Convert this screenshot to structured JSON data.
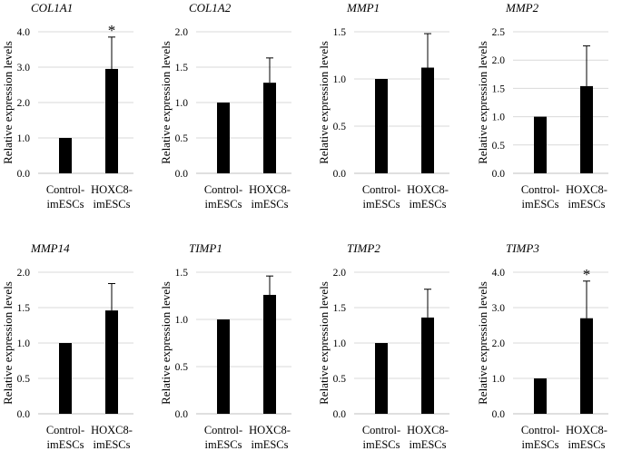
{
  "figure": {
    "ylabel": "Relative expression levels",
    "categories": [
      [
        "Control-",
        "imESCs"
      ],
      [
        "HOXC8-",
        "imESCs"
      ]
    ]
  },
  "chart_data": [
    {
      "type": "bar",
      "title": "COL1A1",
      "categories": [
        "Control-imESCs",
        "HOXC8-imESCs"
      ],
      "values": [
        1.0,
        2.95
      ],
      "error": [
        0,
        0.9
      ],
      "significance": [
        "",
        "*"
      ],
      "ylim": [
        0,
        4.0
      ],
      "yticks": [
        0,
        1,
        2,
        3,
        4
      ],
      "tickLabels": [
        "0.0",
        "1.0",
        "2.0",
        "3.0",
        "4.0"
      ],
      "ylabel": "Relative expression levels",
      "xlabel": "",
      "grid": true
    },
    {
      "type": "bar",
      "title": "COL1A2",
      "categories": [
        "Control-imESCs",
        "HOXC8-imESCs"
      ],
      "values": [
        1.0,
        1.28
      ],
      "error": [
        0,
        0.35
      ],
      "significance": [
        "",
        ""
      ],
      "ylim": [
        0,
        2.0
      ],
      "yticks": [
        0,
        0.5,
        1.0,
        1.5,
        2.0
      ],
      "tickLabels": [
        "0.0",
        "0.5",
        "1.0",
        "1.5",
        "2.0"
      ],
      "ylabel": "Relative expression levels",
      "xlabel": "",
      "grid": true
    },
    {
      "type": "bar",
      "title": "MMP1",
      "categories": [
        "Control-imESCs",
        "HOXC8-imESCs"
      ],
      "values": [
        1.0,
        1.12
      ],
      "error": [
        0,
        0.36
      ],
      "significance": [
        "",
        ""
      ],
      "ylim": [
        0,
        1.5
      ],
      "yticks": [
        0,
        0.5,
        1.0,
        1.5
      ],
      "tickLabels": [
        "0.0",
        "0.5",
        "1.0",
        "1.5"
      ],
      "ylabel": "Relative expression levels",
      "xlabel": "",
      "grid": true
    },
    {
      "type": "bar",
      "title": "MMP2",
      "categories": [
        "Control-imESCs",
        "HOXC8-imESCs"
      ],
      "values": [
        1.0,
        1.54
      ],
      "error": [
        0,
        0.71
      ],
      "significance": [
        "",
        ""
      ],
      "ylim": [
        0,
        2.5
      ],
      "yticks": [
        0,
        0.5,
        1.0,
        1.5,
        2.0,
        2.5
      ],
      "tickLabels": [
        "0.0",
        "0.5",
        "1.0",
        "1.5",
        "2.0",
        "2.5"
      ],
      "ylabel": "Relative expression levels",
      "xlabel": "",
      "grid": true
    },
    {
      "type": "bar",
      "title": "MMP14",
      "categories": [
        "Control-imESCs",
        "HOXC8-imESCs"
      ],
      "values": [
        1.0,
        1.46
      ],
      "error": [
        0,
        0.38
      ],
      "significance": [
        "",
        ""
      ],
      "ylim": [
        0,
        2.0
      ],
      "yticks": [
        0,
        0.5,
        1.0,
        1.5,
        2.0
      ],
      "tickLabels": [
        "0.0",
        "0.5",
        "1.0",
        "1.5",
        "2.0"
      ],
      "ylabel": "Relative expression levels",
      "xlabel": "",
      "grid": true
    },
    {
      "type": "bar",
      "title": "TIMP1",
      "categories": [
        "Control-imESCs",
        "HOXC8-imESCs"
      ],
      "values": [
        1.0,
        1.26
      ],
      "error": [
        0,
        0.2
      ],
      "significance": [
        "",
        ""
      ],
      "ylim": [
        0,
        1.5
      ],
      "yticks": [
        0,
        0.5,
        1.0,
        1.5
      ],
      "tickLabels": [
        "0.0",
        "0.5",
        "1.0",
        "1.5"
      ],
      "ylabel": "Relative expression levels",
      "xlabel": "",
      "grid": true
    },
    {
      "type": "bar",
      "title": "TIMP2",
      "categories": [
        "Control-imESCs",
        "HOXC8-imESCs"
      ],
      "values": [
        1.0,
        1.36
      ],
      "error": [
        0,
        0.4
      ],
      "significance": [
        "",
        ""
      ],
      "ylim": [
        0,
        2.0
      ],
      "yticks": [
        0,
        0.5,
        1.0,
        1.5,
        2.0
      ],
      "tickLabels": [
        "0.0",
        "0.5",
        "1.0",
        "1.5",
        "2.0"
      ],
      "ylabel": "Relative expression levels",
      "xlabel": "",
      "grid": true
    },
    {
      "type": "bar",
      "title": "TIMP3",
      "categories": [
        "Control-imESCs",
        "HOXC8-imESCs"
      ],
      "values": [
        1.0,
        2.7
      ],
      "error": [
        0,
        1.05
      ],
      "significance": [
        "",
        "*"
      ],
      "ylim": [
        0,
        4.0
      ],
      "yticks": [
        0,
        1,
        2,
        3,
        4
      ],
      "tickLabels": [
        "0.0",
        "1.0",
        "2.0",
        "3.0",
        "4.0"
      ],
      "ylabel": "Relative expression levels",
      "xlabel": "",
      "grid": true
    }
  ]
}
